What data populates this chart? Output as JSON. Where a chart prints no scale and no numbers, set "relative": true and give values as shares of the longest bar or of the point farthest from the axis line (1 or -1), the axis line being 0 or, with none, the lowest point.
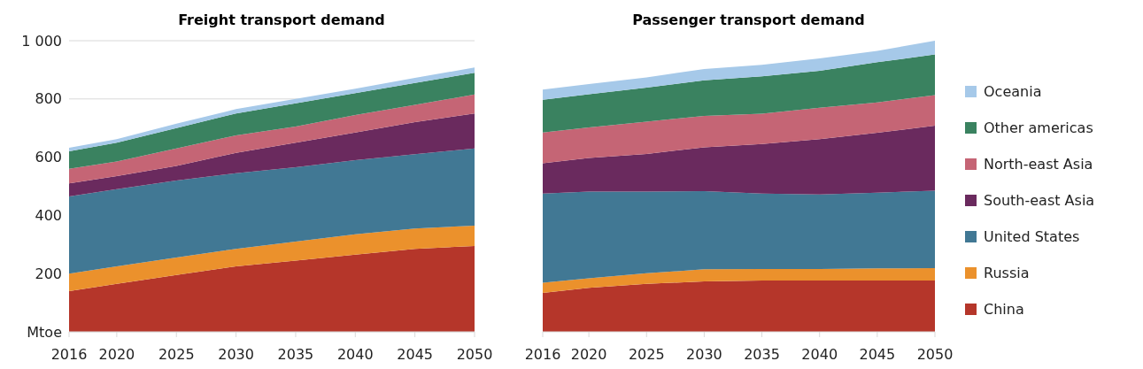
{
  "chart_data": [
    {
      "type": "area",
      "title": "Freight transport demand",
      "stacked": true,
      "x": [
        2016,
        2020,
        2025,
        2030,
        2035,
        2040,
        2045,
        2050
      ],
      "xlim": [
        2016,
        2050
      ],
      "xticks": [
        2016,
        2020,
        2025,
        2030,
        2035,
        2040,
        2045,
        2050
      ],
      "ylim": [
        0,
        1000
      ],
      "yticks": [
        {
          "value": 0,
          "label": "Mtoe"
        },
        200,
        400,
        600,
        800,
        {
          "value": 1000,
          "label": "1 000"
        }
      ],
      "grid": "y",
      "series": [
        {
          "color": "#b5362a",
          "values": [
            140,
            165,
            195,
            225,
            245,
            265,
            285,
            295
          ]
        },
        {
          "color": "#eb912c",
          "values": [
            60,
            60,
            60,
            60,
            65,
            70,
            70,
            70
          ]
        },
        {
          "color": "#417894",
          "values": [
            265,
            265,
            265,
            260,
            255,
            255,
            255,
            265
          ]
        },
        {
          "color": "#6a2a5e",
          "values": [
            45,
            45,
            50,
            70,
            85,
            95,
            110,
            120
          ]
        },
        {
          "color": "#c56575",
          "values": [
            50,
            50,
            60,
            60,
            55,
            60,
            60,
            65
          ]
        },
        {
          "color": "#3a8260",
          "values": [
            60,
            65,
            70,
            75,
            80,
            75,
            75,
            75
          ]
        },
        {
          "color": "#a6c9e9",
          "values": [
            12,
            12,
            15,
            15,
            15,
            15,
            17,
            18
          ]
        }
      ]
    },
    {
      "type": "area",
      "title": "Passenger transport demand",
      "stacked": true,
      "relative": true,
      "x": [
        2016,
        2020,
        2025,
        2030,
        2035,
        2040,
        2045,
        2050
      ],
      "xlim": [
        2016,
        2050
      ],
      "xticks": [
        2016,
        2020,
        2025,
        2030,
        2035,
        2040,
        2045,
        2050
      ],
      "legend": "right",
      "series": [
        {
          "name": "China",
          "color": "#b5362a",
          "values": [
            0.134,
            0.151,
            0.165,
            0.173,
            0.176,
            0.176,
            0.176,
            0.176
          ]
        },
        {
          "name": "Russia",
          "color": "#eb912c",
          "values": [
            0.035,
            0.033,
            0.036,
            0.042,
            0.04,
            0.04,
            0.042,
            0.043
          ]
        },
        {
          "name": "United States",
          "color": "#417894",
          "values": [
            0.306,
            0.298,
            0.281,
            0.268,
            0.259,
            0.256,
            0.26,
            0.266
          ]
        },
        {
          "name": "South-east Asia",
          "color": "#6a2a5e",
          "values": [
            0.104,
            0.115,
            0.129,
            0.151,
            0.17,
            0.19,
            0.206,
            0.223
          ]
        },
        {
          "name": "North-east Asia",
          "color": "#c56575",
          "values": [
            0.106,
            0.105,
            0.111,
            0.108,
            0.104,
            0.108,
            0.104,
            0.105
          ]
        },
        {
          "name": "Other americas",
          "color": "#3a8260",
          "values": [
            0.112,
            0.114,
            0.117,
            0.122,
            0.129,
            0.127,
            0.138,
            0.14
          ]
        },
        {
          "name": "Oceania",
          "color": "#a6c9e9",
          "values": [
            0.035,
            0.035,
            0.035,
            0.039,
            0.039,
            0.042,
            0.039,
            0.047
          ]
        }
      ]
    }
  ]
}
